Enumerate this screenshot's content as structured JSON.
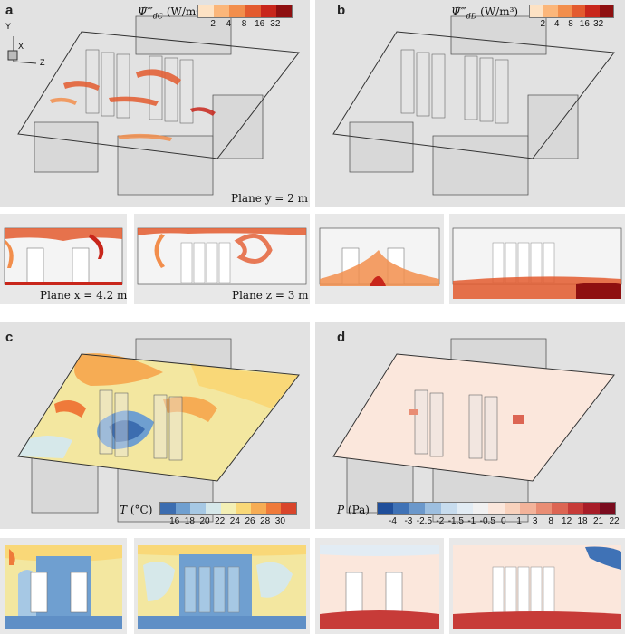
{
  "panels": {
    "a": {
      "label": "a",
      "quantity": "Ψ̇‴",
      "subscript": "dC",
      "unit": "(W/m³)",
      "ticks": [
        "2",
        "4",
        "8",
        "16",
        "32"
      ],
      "colors": [
        "#fde2c4",
        "#fbb67a",
        "#f28e4c",
        "#e35a2e",
        "#c8261b",
        "#8e0f10"
      ],
      "plane_y": "Plane y = 2 m",
      "plane_x": "Plane x = 4.2 m",
      "plane_z": "Plane z = 3 m",
      "axes": {
        "y": "Y",
        "x": "X",
        "z": "Z"
      }
    },
    "b": {
      "label": "b",
      "quantity": "Ψ̇‴",
      "subscript": "dD",
      "unit": "(W/m³)",
      "ticks": [
        "2",
        "4",
        "8",
        "16",
        "32"
      ],
      "colors": [
        "#fde2c4",
        "#fbb67a",
        "#f28e4c",
        "#e35a2e",
        "#c8261b",
        "#8e0f10"
      ]
    },
    "c": {
      "label": "c",
      "quantity": "T",
      "unit": "(°C)",
      "ticks": [
        "16",
        "18",
        "20",
        "22",
        "24",
        "26",
        "28",
        "30"
      ],
      "colors": [
        "#3c6db0",
        "#6f9fd0",
        "#a6c8e4",
        "#d6e8ea",
        "#f3efb5",
        "#f9d878",
        "#f6ac54",
        "#ef7a3a",
        "#d9452b"
      ]
    },
    "d": {
      "label": "d",
      "quantity": "P",
      "unit": "(Pa)",
      "ticks": [
        "-4",
        "-3",
        "-2.5",
        "-2",
        "-1.5",
        "-1",
        "-0.5",
        "0",
        "1",
        "3",
        "8",
        "12",
        "18",
        "21",
        "22"
      ],
      "colors": [
        "#1f4e9a",
        "#3f72b6",
        "#6b98cb",
        "#9dbfe0",
        "#c7dcee",
        "#e2ecf4",
        "#f1f1f1",
        "#fbe7dc",
        "#f8d2bd",
        "#f3b39a",
        "#e98d74",
        "#dc6553",
        "#c73b38",
        "#a81d28",
        "#7a0b1e"
      ]
    }
  }
}
